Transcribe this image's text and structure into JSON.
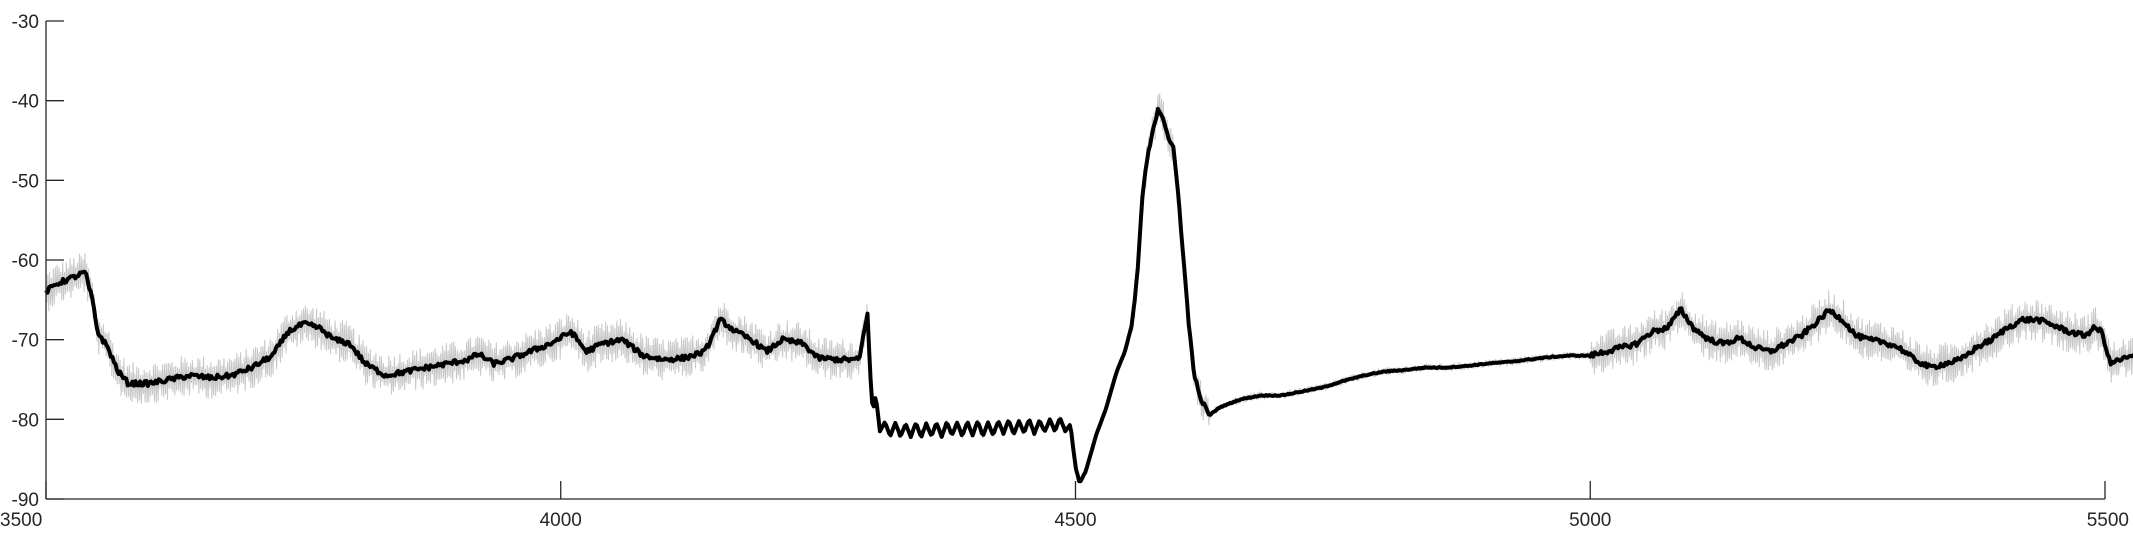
{
  "chart_data": {
    "type": "line",
    "title": "",
    "xlabel": "",
    "ylabel": "",
    "xlim": [
      3500,
      5500
    ],
    "ylim": [
      -90,
      -30
    ],
    "xticks": [
      3500,
      4000,
      4500,
      5000,
      5500
    ],
    "yticks": [
      -30,
      -40,
      -50,
      -60,
      -70,
      -80,
      -90
    ],
    "xtick_labels": [
      "3500",
      "4000",
      "4500",
      "5000",
      "5500"
    ],
    "ytick_labels": [
      "-30",
      "-40",
      "-50",
      "-60",
      "-70",
      "-80",
      "-90"
    ],
    "grid": false,
    "legend": "none",
    "colors": {
      "mean_line": "#000000",
      "variability_band": "#c8c8c8",
      "axes": "#262626"
    },
    "series": [
      {
        "role": "mean",
        "style": "thick black line",
        "points": [
          [
            3500,
            -64
          ],
          [
            3510,
            -63
          ],
          [
            3520,
            -62.5
          ],
          [
            3530,
            -62
          ],
          [
            3538,
            -61.5
          ],
          [
            3545,
            -65
          ],
          [
            3550,
            -69
          ],
          [
            3560,
            -71
          ],
          [
            3570,
            -74
          ],
          [
            3580,
            -75.5
          ],
          [
            3600,
            -75.5
          ],
          [
            3620,
            -75
          ],
          [
            3640,
            -74.5
          ],
          [
            3660,
            -74.8
          ],
          [
            3680,
            -74.5
          ],
          [
            3700,
            -73.5
          ],
          [
            3720,
            -72
          ],
          [
            3735,
            -69
          ],
          [
            3750,
            -68
          ],
          [
            3765,
            -68.5
          ],
          [
            3780,
            -70
          ],
          [
            3795,
            -70.5
          ],
          [
            3810,
            -73
          ],
          [
            3830,
            -74.5
          ],
          [
            3850,
            -74
          ],
          [
            3870,
            -73.5
          ],
          [
            3890,
            -73
          ],
          [
            3910,
            -72.5
          ],
          [
            3920,
            -71.8
          ],
          [
            3935,
            -73
          ],
          [
            3950,
            -72.5
          ],
          [
            3970,
            -71.5
          ],
          [
            3990,
            -70.5
          ],
          [
            4010,
            -69
          ],
          [
            4025,
            -71.5
          ],
          [
            4040,
            -70.5
          ],
          [
            4060,
            -70
          ],
          [
            4080,
            -72
          ],
          [
            4100,
            -72.5
          ],
          [
            4120,
            -72.3
          ],
          [
            4140,
            -71.5
          ],
          [
            4155,
            -67.5
          ],
          [
            4170,
            -69
          ],
          [
            4185,
            -70
          ],
          [
            4200,
            -71.5
          ],
          [
            4215,
            -70
          ],
          [
            4235,
            -70.5
          ],
          [
            4250,
            -72.3
          ],
          [
            4270,
            -72.5
          ],
          [
            4290,
            -72.5
          ],
          [
            4298,
            -66.5
          ],
          [
            4300,
            -73
          ],
          [
            4303,
            -79
          ],
          [
            4306,
            -77
          ],
          [
            4310,
            -81.5
          ],
          [
            4315,
            -80.3
          ],
          [
            4320,
            -82.2
          ],
          [
            4325,
            -80.4
          ],
          [
            4330,
            -82.2
          ],
          [
            4335,
            -80.5
          ],
          [
            4340,
            -82.2
          ],
          [
            4345,
            -80.4
          ],
          [
            4350,
            -82.3
          ],
          [
            4355,
            -80.5
          ],
          [
            4360,
            -82.1
          ],
          [
            4365,
            -80.4
          ],
          [
            4370,
            -82.2
          ],
          [
            4375,
            -80.3
          ],
          [
            4380,
            -82
          ],
          [
            4385,
            -80.4
          ],
          [
            4390,
            -82.1
          ],
          [
            4395,
            -80.3
          ],
          [
            4400,
            -82
          ],
          [
            4405,
            -80.2
          ],
          [
            4410,
            -82.1
          ],
          [
            4415,
            -80.4
          ],
          [
            4420,
            -82
          ],
          [
            4425,
            -80.2
          ],
          [
            4430,
            -81.8
          ],
          [
            4435,
            -80.1
          ],
          [
            4440,
            -81.9
          ],
          [
            4445,
            -80.2
          ],
          [
            4450,
            -81.7
          ],
          [
            4455,
            -80
          ],
          [
            4460,
            -81.8
          ],
          [
            4465,
            -80.1
          ],
          [
            4470,
            -81.6
          ],
          [
            4475,
            -80
          ],
          [
            4480,
            -81.5
          ],
          [
            4485,
            -79.8
          ],
          [
            4490,
            -81.5
          ],
          [
            4495,
            -80.6
          ],
          [
            4500,
            -86
          ],
          [
            4504,
            -88
          ],
          [
            4510,
            -86.5
          ],
          [
            4520,
            -82
          ],
          [
            4530,
            -78.5
          ],
          [
            4540,
            -74
          ],
          [
            4548,
            -71.5
          ],
          [
            4555,
            -68
          ],
          [
            4560,
            -62
          ],
          [
            4565,
            -52
          ],
          [
            4570,
            -47
          ],
          [
            4575,
            -44
          ],
          [
            4580,
            -41
          ],
          [
            4585,
            -42
          ],
          [
            4590,
            -44.5
          ],
          [
            4595,
            -46
          ],
          [
            4600,
            -52
          ],
          [
            4605,
            -60
          ],
          [
            4610,
            -68
          ],
          [
            4615,
            -74
          ],
          [
            4620,
            -77
          ],
          [
            4630,
            -79.5
          ],
          [
            4640,
            -78.5
          ],
          [
            4660,
            -77.5
          ],
          [
            4680,
            -77
          ],
          [
            4700,
            -77
          ],
          [
            4720,
            -76.5
          ],
          [
            4740,
            -76
          ],
          [
            4760,
            -75.2
          ],
          [
            4780,
            -74.5
          ],
          [
            4800,
            -74
          ],
          [
            4820,
            -73.8
          ],
          [
            4840,
            -73.5
          ],
          [
            4860,
            -73.5
          ],
          [
            4880,
            -73.3
          ],
          [
            4900,
            -73
          ],
          [
            4920,
            -72.8
          ],
          [
            4940,
            -72.5
          ],
          [
            4960,
            -72.2
          ],
          [
            4980,
            -72
          ],
          [
            5000,
            -72
          ],
          [
            5015,
            -71.5
          ],
          [
            5030,
            -71
          ],
          [
            5045,
            -70.5
          ],
          [
            5060,
            -69
          ],
          [
            5075,
            -68.5
          ],
          [
            5088,
            -66.2
          ],
          [
            5100,
            -68.5
          ],
          [
            5115,
            -70
          ],
          [
            5130,
            -70.5
          ],
          [
            5145,
            -69.8
          ],
          [
            5160,
            -71
          ],
          [
            5175,
            -71.5
          ],
          [
            5190,
            -70.5
          ],
          [
            5205,
            -69.5
          ],
          [
            5220,
            -67.8
          ],
          [
            5232,
            -66.3
          ],
          [
            5245,
            -67.5
          ],
          [
            5258,
            -69.5
          ],
          [
            5270,
            -70
          ],
          [
            5285,
            -70.3
          ],
          [
            5300,
            -71
          ],
          [
            5315,
            -72.5
          ],
          [
            5330,
            -73.5
          ],
          [
            5345,
            -73
          ],
          [
            5360,
            -72.5
          ],
          [
            5375,
            -71
          ],
          [
            5390,
            -70
          ],
          [
            5405,
            -68.5
          ],
          [
            5420,
            -67.5
          ],
          [
            5435,
            -67.5
          ],
          [
            5450,
            -68.2
          ],
          [
            5465,
            -69
          ],
          [
            5480,
            -69.5
          ],
          [
            5490,
            -68.5
          ],
          [
            5497,
            -69
          ],
          [
            5505,
            -73
          ],
          [
            5515,
            -72.5
          ],
          [
            5530,
            -72
          ],
          [
            5546,
            -72.5
          ]
        ]
      }
    ]
  }
}
